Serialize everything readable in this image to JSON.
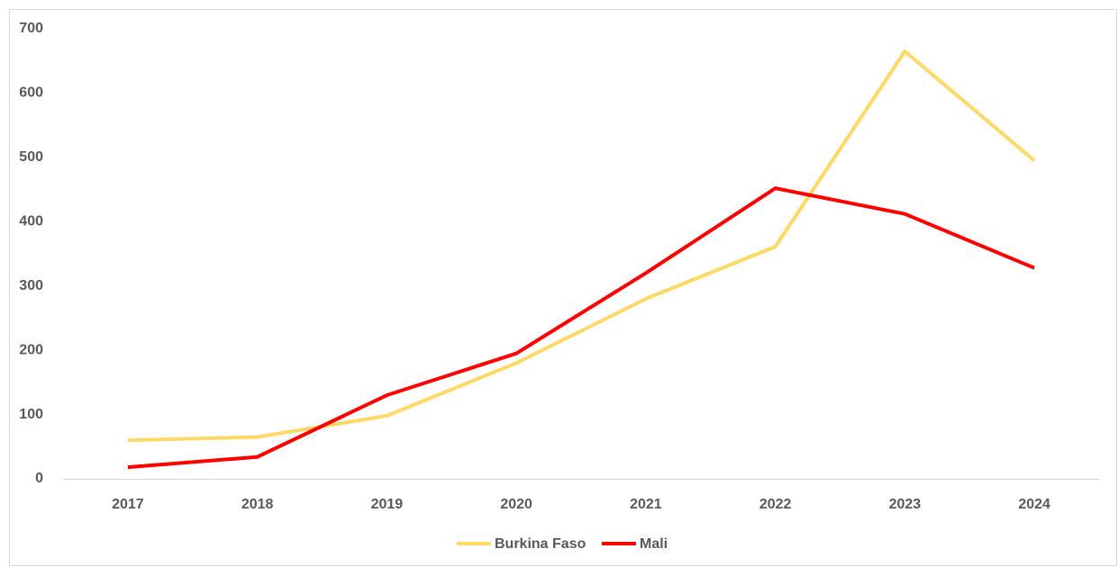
{
  "chart_data": {
    "type": "line",
    "categories": [
      "2017",
      "2018",
      "2019",
      "2020",
      "2021",
      "2022",
      "2023",
      "2024"
    ],
    "series": [
      {
        "name": "Burkina Faso",
        "color": "#ffd966",
        "values": [
          60,
          65,
          98,
          180,
          280,
          361,
          665,
          495
        ]
      },
      {
        "name": "Mali",
        "color": "#ff0000",
        "values": [
          18,
          34,
          130,
          195,
          320,
          452,
          412,
          328
        ]
      }
    ],
    "ylim": [
      0,
      700
    ],
    "yticks": [
      0,
      100,
      200,
      300,
      400,
      500,
      600,
      700
    ],
    "grid": false,
    "legend": "bottom"
  }
}
